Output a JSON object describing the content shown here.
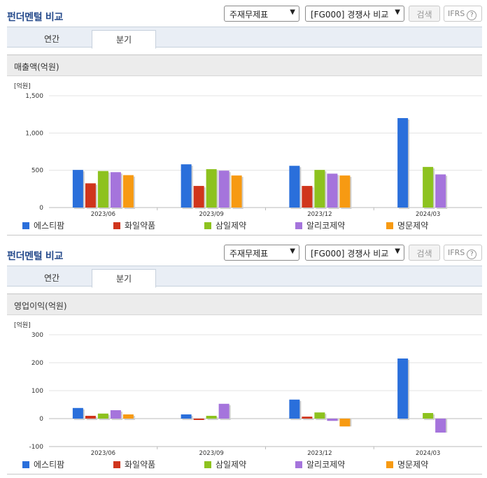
{
  "sections": [
    {
      "header": {
        "title": "펀더멘털 비교",
        "select_statement": "주재무제표",
        "select_peer": "[FG000] 경쟁사 비교",
        "search_label": "검색",
        "ifrs_label": "IFRS"
      },
      "tabs": [
        "연간",
        "분기"
      ],
      "active_tab": 1,
      "panel_title": "매출액(억원)",
      "unit_label": "[억원]"
    },
    {
      "header": {
        "title": "펀더멘털 비교",
        "select_statement": "주재무제표",
        "select_peer": "[FG000] 경쟁사 비교",
        "search_label": "검색",
        "ifrs_label": "IFRS"
      },
      "tabs": [
        "연간",
        "분기"
      ],
      "active_tab": 1,
      "panel_title": "영업이익(억원)",
      "unit_label": "[억원]"
    }
  ],
  "colors": {
    "에스티팜": "#2a6fdb",
    "화일약품": "#d0351c",
    "삼일제약": "#8dc21f",
    "알리코제약": "#a574dc",
    "명문제약": "#f79a12"
  },
  "chart_data": [
    {
      "type": "bar",
      "title": "매출액(억원)",
      "ylabel": "[억원]",
      "categories": [
        "2023/06",
        "2023/09",
        "2023/12",
        "2024/03"
      ],
      "ylim": [
        0,
        1500
      ],
      "yticks": [
        0,
        500,
        1000,
        1500
      ],
      "ytick_labels": [
        "0",
        "500",
        "1,000",
        "1,500"
      ],
      "series": [
        {
          "name": "에스티팜",
          "values": [
            505,
            580,
            560,
            1200
          ]
        },
        {
          "name": "화일약품",
          "values": [
            325,
            290,
            290,
            null
          ]
        },
        {
          "name": "삼일제약",
          "values": [
            490,
            515,
            505,
            545
          ]
        },
        {
          "name": "알리코제약",
          "values": [
            475,
            495,
            455,
            445
          ]
        },
        {
          "name": "명문제약",
          "values": [
            435,
            430,
            430,
            null
          ]
        }
      ],
      "legend_position": "bottom",
      "grid": true
    },
    {
      "type": "bar",
      "title": "영업이익(억원)",
      "ylabel": "[억원]",
      "categories": [
        "2023/06",
        "2023/09",
        "2023/12",
        "2024/03"
      ],
      "ylim": [
        -100,
        300
      ],
      "yticks": [
        -100,
        0,
        100,
        200,
        300
      ],
      "ytick_labels": [
        "-100",
        "0",
        "100",
        "200",
        "300"
      ],
      "series": [
        {
          "name": "에스티팜",
          "values": [
            38,
            15,
            68,
            215
          ]
        },
        {
          "name": "화일약품",
          "values": [
            10,
            -5,
            7,
            null
          ]
        },
        {
          "name": "삼일제약",
          "values": [
            18,
            10,
            22,
            20
          ]
        },
        {
          "name": "알리코제약",
          "values": [
            30,
            53,
            -8,
            -50
          ]
        },
        {
          "name": "명문제약",
          "values": [
            15,
            null,
            -28,
            null
          ]
        }
      ],
      "legend_position": "bottom",
      "grid": true
    }
  ]
}
